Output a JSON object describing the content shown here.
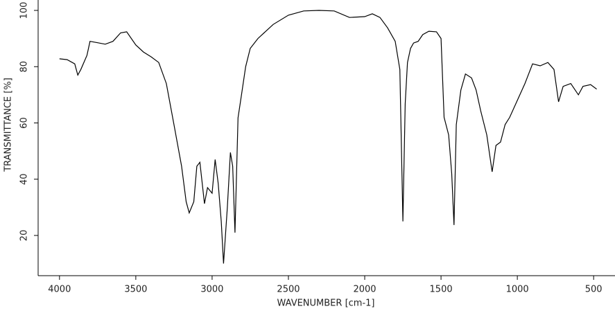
{
  "chart_data": {
    "type": "line",
    "x_label": "WAVENUMBER [cm-1]",
    "y_label": "TRANSMITTANCE [%]",
    "x": [
      4000,
      3950,
      3900,
      3880,
      3860,
      3820,
      3800,
      3750,
      3700,
      3650,
      3600,
      3560,
      3500,
      3450,
      3400,
      3350,
      3300,
      3250,
      3200,
      3170,
      3150,
      3120,
      3100,
      3080,
      3050,
      3030,
      3000,
      2980,
      2960,
      2940,
      2925,
      2900,
      2880,
      2865,
      2850,
      2830,
      2810,
      2780,
      2750,
      2700,
      2600,
      2500,
      2400,
      2300,
      2200,
      2100,
      2000,
      1950,
      1900,
      1850,
      1800,
      1770,
      1750,
      1735,
      1720,
      1700,
      1680,
      1650,
      1620,
      1580,
      1530,
      1500,
      1480,
      1450,
      1430,
      1415,
      1400,
      1370,
      1340,
      1300,
      1270,
      1240,
      1200,
      1165,
      1140,
      1110,
      1080,
      1050,
      1000,
      950,
      900,
      850,
      800,
      760,
      730,
      700,
      650,
      600,
      570,
      520,
      480
    ],
    "values": [
      82.8,
      82.5,
      81,
      77,
      79,
      84,
      89,
      88.5,
      88,
      89,
      92,
      92.4,
      87.7,
      85.2,
      83.5,
      81.5,
      74,
      59.4,
      44.6,
      32,
      28,
      32,
      44.6,
      46,
      31.3,
      37,
      35,
      47,
      38.5,
      25,
      10,
      30,
      49.5,
      44.6,
      21,
      61.8,
      69,
      80,
      86.5,
      90,
      95,
      98.3,
      99.8,
      100,
      99.8,
      97.5,
      97.8,
      98.8,
      97.5,
      93.8,
      89,
      79,
      25,
      66.8,
      81.5,
      86.5,
      88.4,
      89,
      91.4,
      92.6,
      92.4,
      90,
      62,
      55.7,
      42,
      23.7,
      59.4,
      71.7,
      77.4,
      76,
      71.7,
      64.3,
      55.7,
      42.6,
      52,
      53.2,
      59.4,
      62,
      68,
      74,
      81,
      80.3,
      81.5,
      79,
      67.5,
      73,
      74,
      70,
      73,
      73.6,
      72
    ],
    "color": "#000000",
    "xlim": [
      4140,
      360
    ],
    "ylim": [
      5.7,
      103.7
    ],
    "xticks": [
      4000,
      3500,
      3000,
      2500,
      2000,
      1500,
      1000,
      500
    ],
    "yticks": [
      20,
      40,
      60,
      80,
      100
    ]
  }
}
